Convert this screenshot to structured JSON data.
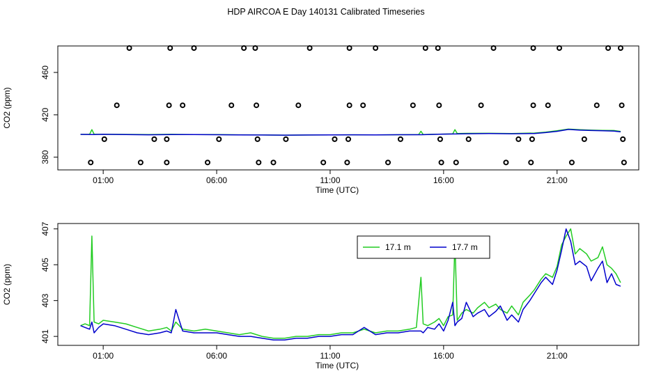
{
  "title": "HDP AIRCOA E  Day 140131  Calibrated Timeseries",
  "colors": {
    "series_17_1": "#22cc22",
    "series_17_7": "#0000cc",
    "axis": "#000000"
  },
  "chart_data": [
    {
      "type": "scatter",
      "panel": "top",
      "xlabel": "Time (UTC)",
      "ylabel": "CO2 (ppm)",
      "x_unit": "hours UTC",
      "xlim": [
        -1.0,
        24.6
      ],
      "ylim": [
        368,
        485
      ],
      "x_tick_labels": [
        "01:00",
        "06:00",
        "11:00",
        "16:00",
        "21:00"
      ],
      "y_tick_labels": [
        "380",
        "420",
        "460"
      ],
      "grid": false,
      "flag_levels": [
        375,
        397,
        429,
        483
      ],
      "flag_points": [
        {
          "x": 0.45,
          "y": 375
        },
        {
          "x": 1.05,
          "y": 397
        },
        {
          "x": 1.6,
          "y": 429
        },
        {
          "x": 2.15,
          "y": 483
        },
        {
          "x": 2.65,
          "y": 375
        },
        {
          "x": 3.25,
          "y": 397
        },
        {
          "x": 3.8,
          "y": 375
        },
        {
          "x": 3.8,
          "y": 397
        },
        {
          "x": 3.9,
          "y": 429
        },
        {
          "x": 3.95,
          "y": 483
        },
        {
          "x": 4.5,
          "y": 429
        },
        {
          "x": 5.0,
          "y": 483
        },
        {
          "x": 5.6,
          "y": 375
        },
        {
          "x": 6.1,
          "y": 397
        },
        {
          "x": 6.65,
          "y": 429
        },
        {
          "x": 7.2,
          "y": 483
        },
        {
          "x": 7.7,
          "y": 483
        },
        {
          "x": 7.75,
          "y": 429
        },
        {
          "x": 7.8,
          "y": 397
        },
        {
          "x": 7.85,
          "y": 375
        },
        {
          "x": 8.5,
          "y": 375
        },
        {
          "x": 9.05,
          "y": 397
        },
        {
          "x": 9.6,
          "y": 429
        },
        {
          "x": 10.1,
          "y": 483
        },
        {
          "x": 10.7,
          "y": 375
        },
        {
          "x": 11.2,
          "y": 397
        },
        {
          "x": 11.75,
          "y": 375
        },
        {
          "x": 11.8,
          "y": 397
        },
        {
          "x": 11.85,
          "y": 429
        },
        {
          "x": 11.85,
          "y": 483
        },
        {
          "x": 12.45,
          "y": 429
        },
        {
          "x": 13.0,
          "y": 483
        },
        {
          "x": 13.55,
          "y": 375
        },
        {
          "x": 14.1,
          "y": 397
        },
        {
          "x": 14.65,
          "y": 429
        },
        {
          "x": 15.2,
          "y": 483
        },
        {
          "x": 15.75,
          "y": 483
        },
        {
          "x": 15.8,
          "y": 429
        },
        {
          "x": 15.85,
          "y": 397
        },
        {
          "x": 15.9,
          "y": 375
        },
        {
          "x": 16.55,
          "y": 375
        },
        {
          "x": 17.1,
          "y": 397
        },
        {
          "x": 17.65,
          "y": 429
        },
        {
          "x": 18.2,
          "y": 483
        },
        {
          "x": 18.75,
          "y": 375
        },
        {
          "x": 19.3,
          "y": 397
        },
        {
          "x": 19.85,
          "y": 375
        },
        {
          "x": 19.9,
          "y": 397
        },
        {
          "x": 19.95,
          "y": 429
        },
        {
          "x": 19.95,
          "y": 483
        },
        {
          "x": 20.6,
          "y": 429
        },
        {
          "x": 21.1,
          "y": 483
        },
        {
          "x": 21.65,
          "y": 375
        },
        {
          "x": 22.2,
          "y": 397
        },
        {
          "x": 22.75,
          "y": 429
        },
        {
          "x": 23.25,
          "y": 483
        },
        {
          "x": 23.8,
          "y": 483
        },
        {
          "x": 23.85,
          "y": 429
        },
        {
          "x": 23.9,
          "y": 397
        },
        {
          "x": 23.95,
          "y": 375
        }
      ],
      "series": [
        {
          "name": "17.1 m",
          "color": "#22cc22",
          "x": [
            0,
            0.4,
            0.5,
            0.6,
            1.0,
            2.0,
            3.0,
            4.0,
            5.0,
            6.0,
            7.0,
            8.0,
            9.0,
            10.0,
            11.0,
            12.0,
            13.0,
            14.0,
            14.9,
            15.0,
            15.1,
            15.5,
            16.4,
            16.5,
            16.6,
            17.0,
            18.0,
            19.0,
            20.0,
            20.5,
            21.0,
            21.5,
            22.0,
            22.5,
            23.0,
            23.5,
            23.8
          ],
          "y": [
            401.5,
            401.6,
            406.0,
            401.7,
            401.6,
            401.5,
            401.3,
            401.6,
            401.4,
            401.3,
            401.1,
            401.0,
            400.8,
            400.9,
            401.0,
            401.1,
            401.0,
            401.2,
            401.3,
            404.5,
            401.4,
            401.6,
            402.0,
            406.0,
            402.3,
            402.5,
            402.6,
            402.4,
            402.8,
            403.6,
            405.0,
            406.5,
            406.0,
            405.5,
            405.3,
            405.2,
            404.3
          ]
        },
        {
          "name": "17.7 m",
          "color": "#0000cc",
          "x": [
            0,
            0.5,
            1.0,
            2.0,
            3.0,
            4.0,
            5.0,
            6.0,
            7.0,
            8.0,
            9.0,
            10.0,
            11.0,
            12.0,
            13.0,
            14.0,
            15.0,
            16.0,
            17.0,
            18.0,
            19.0,
            20.0,
            20.5,
            21.0,
            21.5,
            22.0,
            22.5,
            23.0,
            23.5,
            23.8
          ],
          "y": [
            401.5,
            401.4,
            401.6,
            401.4,
            401.1,
            401.4,
            401.3,
            401.2,
            401.0,
            400.9,
            400.8,
            400.9,
            401.0,
            401.1,
            401.0,
            401.2,
            401.2,
            401.8,
            402.1,
            402.3,
            402.1,
            402.4,
            403.2,
            404.4,
            406.2,
            405.5,
            405.2,
            405.0,
            404.7,
            403.9
          ]
        }
      ]
    },
    {
      "type": "line",
      "panel": "bottom",
      "xlabel": "Time (UTC)",
      "ylabel": "CO2 (ppm)",
      "x_unit": "hours UTC",
      "xlim": [
        -1.0,
        24.6
      ],
      "ylim": [
        400.5,
        407.3
      ],
      "x_tick_labels": [
        "01:00",
        "06:00",
        "11:00",
        "16:00",
        "21:00"
      ],
      "y_tick_labels": [
        "401",
        "403",
        "405",
        "407"
      ],
      "legend_position": "top-right",
      "grid": false,
      "series": [
        {
          "name": "17.1 m",
          "color": "#22cc22",
          "x": [
            0.0,
            0.2,
            0.4,
            0.5,
            0.6,
            0.8,
            1.0,
            1.5,
            2.0,
            2.5,
            3.0,
            3.5,
            3.8,
            4.0,
            4.2,
            4.5,
            5.0,
            5.5,
            6.0,
            6.5,
            7.0,
            7.5,
            8.0,
            8.5,
            9.0,
            9.5,
            10.0,
            10.5,
            11.0,
            11.5,
            12.0,
            12.5,
            13.0,
            13.5,
            14.0,
            14.5,
            14.8,
            15.0,
            15.1,
            15.3,
            15.6,
            15.8,
            16.0,
            16.2,
            16.4,
            16.5,
            16.6,
            16.8,
            17.0,
            17.3,
            17.5,
            17.8,
            18.0,
            18.3,
            18.5,
            18.8,
            19.0,
            19.3,
            19.5,
            19.8,
            20.0,
            20.3,
            20.5,
            20.8,
            21.0,
            21.2,
            21.4,
            21.6,
            21.8,
            22.0,
            22.3,
            22.5,
            22.8,
            23.0,
            23.2,
            23.4,
            23.6,
            23.8
          ],
          "y": [
            401.6,
            401.7,
            401.6,
            406.6,
            401.8,
            401.7,
            401.9,
            401.8,
            401.7,
            401.5,
            401.3,
            401.4,
            401.5,
            401.3,
            401.8,
            401.4,
            401.3,
            401.4,
            401.3,
            401.2,
            401.1,
            401.2,
            401.0,
            400.9,
            400.9,
            401.0,
            401.0,
            401.1,
            401.1,
            401.2,
            401.2,
            401.4,
            401.2,
            401.3,
            401.3,
            401.4,
            401.5,
            404.3,
            401.7,
            401.6,
            401.8,
            402.0,
            401.6,
            402.1,
            402.2,
            406.3,
            401.9,
            402.3,
            402.5,
            402.3,
            402.6,
            402.9,
            402.6,
            402.8,
            402.5,
            402.3,
            402.7,
            402.2,
            402.9,
            403.3,
            403.6,
            404.2,
            404.5,
            404.3,
            404.9,
            406.1,
            406.6,
            407.0,
            405.6,
            405.9,
            405.6,
            405.2,
            405.4,
            406.0,
            405.0,
            404.8,
            404.5,
            404.0
          ]
        },
        {
          "name": "17.7 m",
          "color": "#0000cc",
          "x": [
            0.0,
            0.2,
            0.4,
            0.5,
            0.6,
            0.8,
            1.0,
            1.5,
            2.0,
            2.5,
            3.0,
            3.5,
            3.8,
            4.0,
            4.2,
            4.5,
            5.0,
            5.5,
            6.0,
            6.5,
            7.0,
            7.5,
            8.0,
            8.5,
            9.0,
            9.5,
            10.0,
            10.5,
            11.0,
            11.5,
            12.0,
            12.5,
            13.0,
            13.5,
            14.0,
            14.5,
            14.8,
            15.0,
            15.1,
            15.3,
            15.6,
            15.8,
            16.0,
            16.2,
            16.4,
            16.5,
            16.6,
            16.8,
            17.0,
            17.3,
            17.5,
            17.8,
            18.0,
            18.3,
            18.5,
            18.8,
            19.0,
            19.3,
            19.5,
            19.8,
            20.0,
            20.3,
            20.5,
            20.8,
            21.0,
            21.2,
            21.4,
            21.6,
            21.8,
            22.0,
            22.3,
            22.5,
            22.8,
            23.0,
            23.2,
            23.4,
            23.6,
            23.8
          ],
          "y": [
            401.6,
            401.5,
            401.4,
            401.8,
            401.2,
            401.5,
            401.7,
            401.6,
            401.4,
            401.2,
            401.1,
            401.2,
            401.3,
            401.2,
            402.5,
            401.3,
            401.2,
            401.2,
            401.2,
            401.1,
            401.0,
            401.0,
            400.9,
            400.8,
            400.8,
            400.9,
            400.9,
            401.0,
            401.0,
            401.1,
            401.1,
            401.5,
            401.1,
            401.2,
            401.2,
            401.3,
            401.3,
            401.3,
            401.2,
            401.5,
            401.4,
            401.7,
            401.3,
            401.9,
            402.9,
            401.6,
            401.8,
            402.0,
            402.9,
            402.1,
            402.3,
            402.5,
            402.1,
            402.4,
            402.7,
            401.9,
            402.2,
            401.8,
            402.5,
            403.0,
            403.4,
            404.0,
            404.3,
            403.9,
            404.7,
            405.8,
            407.0,
            406.3,
            405.0,
            405.2,
            404.9,
            404.1,
            404.8,
            405.2,
            404.0,
            404.5,
            403.9,
            403.8
          ]
        }
      ]
    }
  ]
}
